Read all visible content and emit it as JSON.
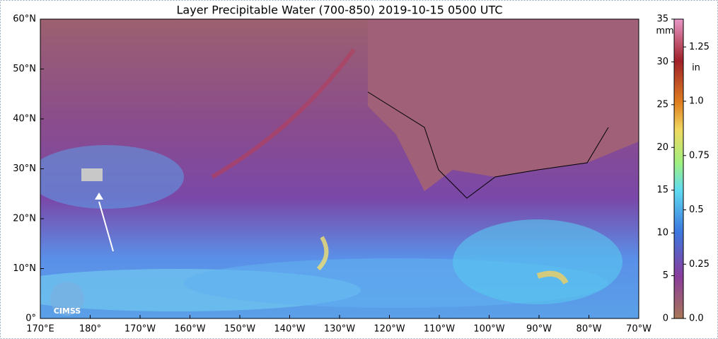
{
  "title": "Layer Precipitable Water (700-850)  2019-10-15 0500 UTC",
  "map": {
    "xlim": [
      170,
      290
    ],
    "ylim": [
      0,
      60
    ],
    "xticks": [
      {
        "value": 170,
        "label": "170°E"
      },
      {
        "value": 180,
        "label": "180°"
      },
      {
        "value": 190,
        "label": "170°W"
      },
      {
        "value": 200,
        "label": "160°W"
      },
      {
        "value": 210,
        "label": "150°W"
      },
      {
        "value": 220,
        "label": "140°W"
      },
      {
        "value": 230,
        "label": "130°W"
      },
      {
        "value": 240,
        "label": "120°W"
      },
      {
        "value": 250,
        "label": "110°W"
      },
      {
        "value": 260,
        "label": "100°W"
      },
      {
        "value": 270,
        "label": "90°W"
      },
      {
        "value": 280,
        "label": "80°W"
      },
      {
        "value": 290,
        "label": "70°W"
      }
    ],
    "yticks": [
      {
        "value": 0,
        "label": "0°"
      },
      {
        "value": 10,
        "label": "10°N"
      },
      {
        "value": 20,
        "label": "20°N"
      },
      {
        "value": 30,
        "label": "30°N"
      },
      {
        "value": 40,
        "label": "40°N"
      },
      {
        "value": 50,
        "label": "50°N"
      },
      {
        "value": 60,
        "label": "60°N"
      }
    ]
  },
  "colorbar": {
    "mm_label": "mm",
    "mm_lim": [
      0,
      35
    ],
    "mm_ticks": [
      0,
      5,
      10,
      15,
      20,
      25,
      30,
      35
    ],
    "in_label": "in",
    "in_lim": [
      0,
      1.378
    ],
    "in_ticks": [
      {
        "value": 0,
        "label": "0.0"
      },
      0.25,
      0.5,
      0.75,
      {
        "value": 1,
        "label": "1.0"
      },
      1.25
    ]
  },
  "logo": "CIMSS"
}
